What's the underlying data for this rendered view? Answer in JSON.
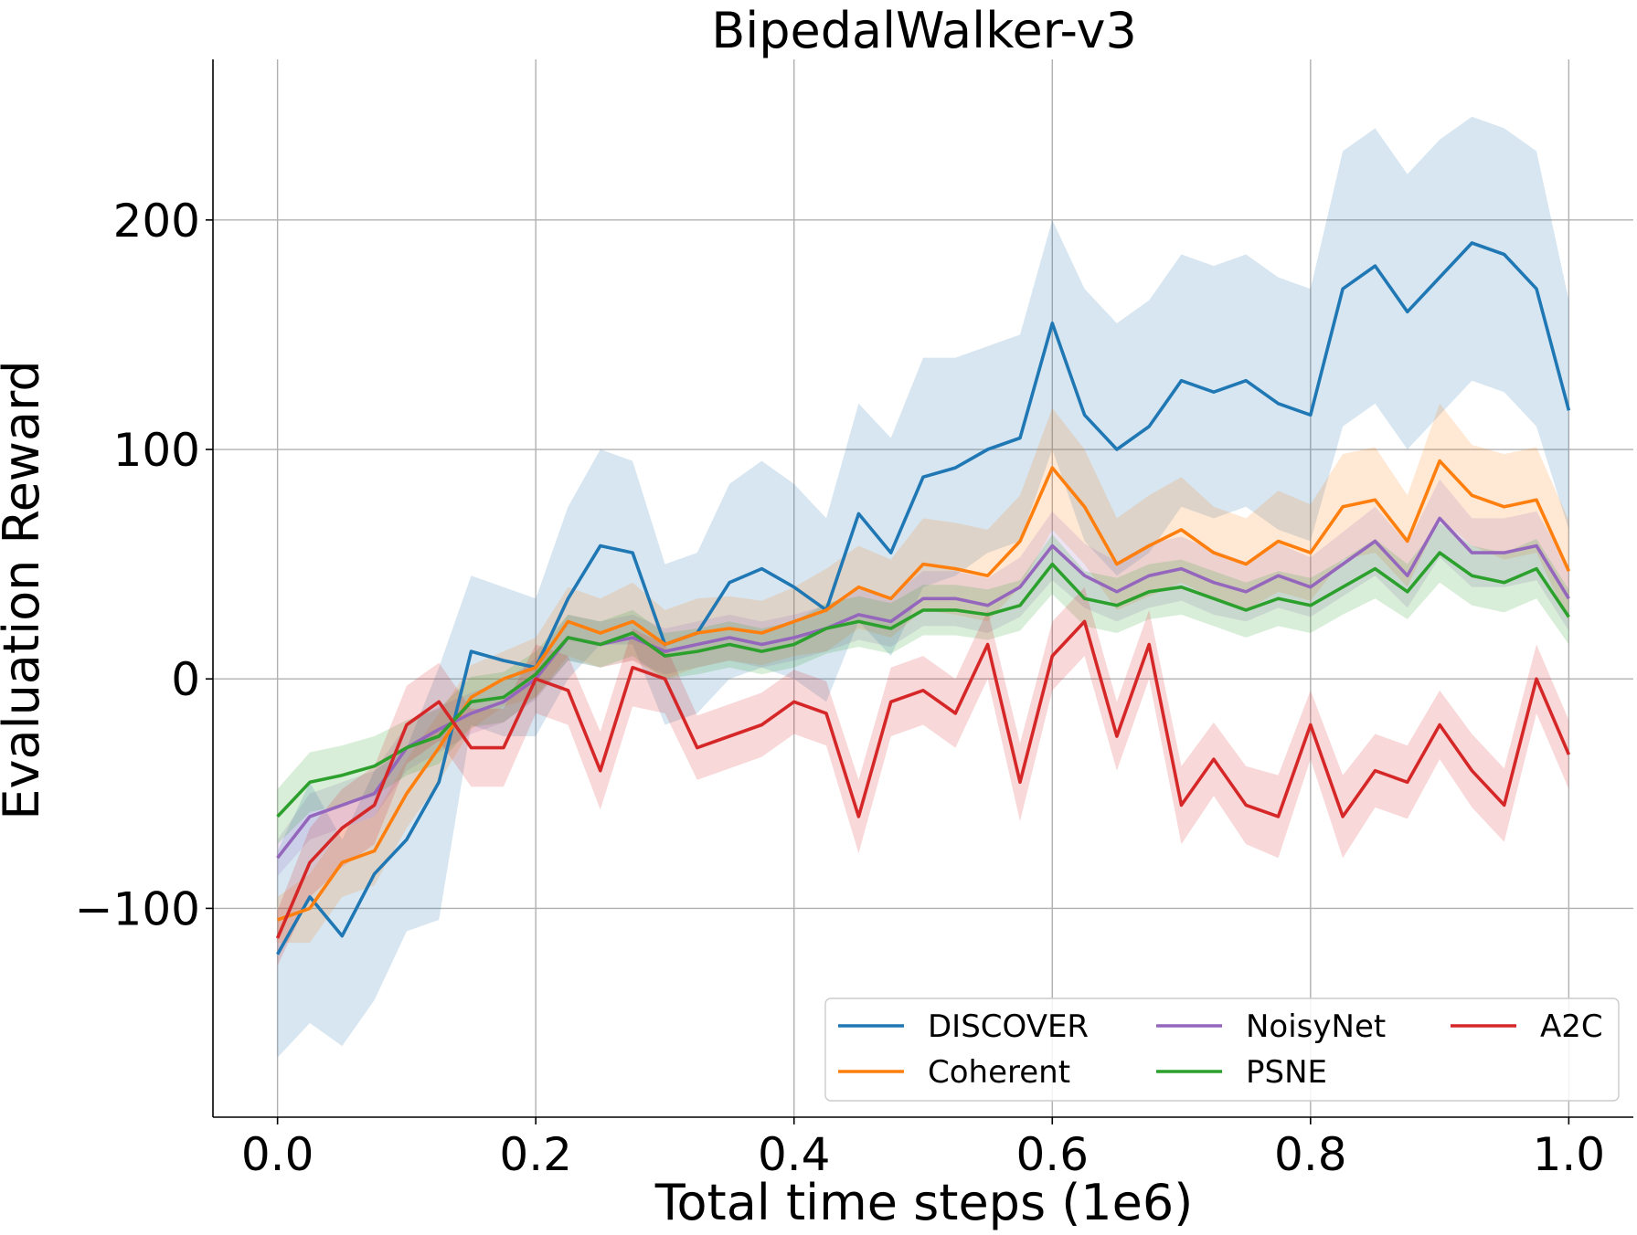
{
  "chart_data": {
    "type": "line",
    "title": "BipedalWalker-v3",
    "xlabel": "Total time steps (1e6)",
    "ylabel": "Evaluation Reward",
    "xlim": [
      -0.05,
      1.05
    ],
    "ylim": [
      -191,
      270
    ],
    "xticks": [
      0.0,
      0.2,
      0.4,
      0.6,
      0.8,
      1.0
    ],
    "xtick_labels": [
      "0.0",
      "0.2",
      "0.4",
      "0.6",
      "0.8",
      "1.0"
    ],
    "yticks": [
      -100,
      0,
      100,
      200
    ],
    "ytick_labels": [
      "−100",
      "0",
      "100",
      "200"
    ],
    "grid": true,
    "legend": {
      "placement": "lower-right",
      "columns": 3
    },
    "x": [
      0.0,
      0.025,
      0.05,
      0.075,
      0.1,
      0.125,
      0.15,
      0.175,
      0.2,
      0.225,
      0.25,
      0.275,
      0.3,
      0.325,
      0.35,
      0.375,
      0.4,
      0.425,
      0.45,
      0.475,
      0.5,
      0.525,
      0.55,
      0.575,
      0.6,
      0.625,
      0.65,
      0.675,
      0.7,
      0.725,
      0.75,
      0.775,
      0.8,
      0.825,
      0.85,
      0.875,
      0.9,
      0.925,
      0.95,
      0.975,
      1.0
    ],
    "series": [
      {
        "name": "DISCOVER",
        "color": "#1f77b4",
        "values": [
          -120,
          -95,
          -112,
          -85,
          -70,
          -45,
          12,
          8,
          5,
          35,
          58,
          55,
          15,
          20,
          42,
          48,
          40,
          30,
          72,
          55,
          88,
          92,
          100,
          105,
          155,
          115,
          100,
          110,
          130,
          125,
          130,
          120,
          115,
          170,
          180,
          160,
          175,
          190,
          185,
          170,
          117
        ],
        "band": [
          [
            -165,
            -75
          ],
          [
            -150,
            -45
          ],
          [
            -160,
            -70
          ],
          [
            -140,
            -40
          ],
          [
            -110,
            -30
          ],
          [
            -105,
            5
          ],
          [
            -20,
            45
          ],
          [
            -25,
            40
          ],
          [
            -25,
            35
          ],
          [
            0,
            75
          ],
          [
            15,
            100
          ],
          [
            15,
            95
          ],
          [
            -20,
            50
          ],
          [
            -15,
            55
          ],
          [
            0,
            85
          ],
          [
            5,
            95
          ],
          [
            0,
            85
          ],
          [
            -10,
            70
          ],
          [
            25,
            120
          ],
          [
            10,
            105
          ],
          [
            40,
            140
          ],
          [
            45,
            140
          ],
          [
            55,
            145
          ],
          [
            60,
            150
          ],
          [
            100,
            200
          ],
          [
            60,
            170
          ],
          [
            45,
            155
          ],
          [
            55,
            165
          ],
          [
            75,
            185
          ],
          [
            70,
            180
          ],
          [
            75,
            185
          ],
          [
            65,
            175
          ],
          [
            60,
            170
          ],
          [
            110,
            230
          ],
          [
            120,
            240
          ],
          [
            100,
            220
          ],
          [
            115,
            235
          ],
          [
            130,
            245
          ],
          [
            125,
            240
          ],
          [
            110,
            230
          ],
          [
            65,
            165
          ]
        ]
      },
      {
        "name": "Coherent",
        "color": "#ff7f0e",
        "values": [
          -105,
          -100,
          -80,
          -75,
          -50,
          -30,
          -8,
          0,
          5,
          25,
          20,
          25,
          15,
          20,
          22,
          20,
          25,
          30,
          40,
          35,
          50,
          48,
          45,
          60,
          92,
          75,
          50,
          58,
          65,
          55,
          50,
          60,
          55,
          75,
          78,
          60,
          95,
          80,
          75,
          78,
          47
        ],
        "band": [
          [
            -115,
            -95
          ],
          [
            -115,
            -85
          ],
          [
            -95,
            -65
          ],
          [
            -90,
            -60
          ],
          [
            -65,
            -35
          ],
          [
            -45,
            -15
          ],
          [
            -22,
            6
          ],
          [
            -12,
            12
          ],
          [
            -8,
            18
          ],
          [
            10,
            40
          ],
          [
            5,
            35
          ],
          [
            8,
            42
          ],
          [
            0,
            30
          ],
          [
            5,
            35
          ],
          [
            8,
            36
          ],
          [
            6,
            34
          ],
          [
            10,
            40
          ],
          [
            12,
            48
          ],
          [
            22,
            58
          ],
          [
            18,
            52
          ],
          [
            30,
            70
          ],
          [
            28,
            68
          ],
          [
            25,
            65
          ],
          [
            40,
            80
          ],
          [
            65,
            118
          ],
          [
            50,
            100
          ],
          [
            30,
            70
          ],
          [
            36,
            80
          ],
          [
            42,
            88
          ],
          [
            35,
            75
          ],
          [
            30,
            70
          ],
          [
            38,
            82
          ],
          [
            34,
            76
          ],
          [
            52,
            98
          ],
          [
            55,
            101
          ],
          [
            40,
            80
          ],
          [
            70,
            120
          ],
          [
            58,
            102
          ],
          [
            52,
            98
          ],
          [
            55,
            101
          ],
          [
            25,
            69
          ]
        ]
      },
      {
        "name": "NoisyNet",
        "color": "#9467bd",
        "values": [
          -78,
          -60,
          -55,
          -50,
          -30,
          -22,
          -15,
          -10,
          0,
          18,
          15,
          18,
          12,
          15,
          18,
          15,
          18,
          22,
          28,
          25,
          35,
          35,
          32,
          40,
          58,
          45,
          38,
          45,
          48,
          42,
          38,
          45,
          40,
          50,
          60,
          45,
          70,
          55,
          55,
          58,
          35
        ],
        "band": [
          [
            -86,
            -70
          ],
          [
            -70,
            -50
          ],
          [
            -65,
            -45
          ],
          [
            -60,
            -40
          ],
          [
            -40,
            -20
          ],
          [
            -32,
            -12
          ],
          [
            -24,
            -6
          ],
          [
            -19,
            -1
          ],
          [
            -9,
            9
          ],
          [
            8,
            28
          ],
          [
            5,
            25
          ],
          [
            8,
            28
          ],
          [
            2,
            22
          ],
          [
            5,
            25
          ],
          [
            8,
            28
          ],
          [
            5,
            25
          ],
          [
            8,
            28
          ],
          [
            12,
            32
          ],
          [
            17,
            39
          ],
          [
            14,
            36
          ],
          [
            23,
            47
          ],
          [
            23,
            47
          ],
          [
            20,
            44
          ],
          [
            27,
            53
          ],
          [
            43,
            73
          ],
          [
            31,
            59
          ],
          [
            25,
            51
          ],
          [
            31,
            59
          ],
          [
            34,
            62
          ],
          [
            28,
            56
          ],
          [
            25,
            51
          ],
          [
            31,
            59
          ],
          [
            27,
            53
          ],
          [
            36,
            64
          ],
          [
            45,
            75
          ],
          [
            31,
            59
          ],
          [
            53,
            87
          ],
          [
            40,
            70
          ],
          [
            40,
            70
          ],
          [
            43,
            73
          ],
          [
            21,
            49
          ]
        ]
      },
      {
        "name": "PSNE",
        "color": "#2ca02c",
        "values": [
          -60,
          -45,
          -42,
          -38,
          -30,
          -25,
          -10,
          -8,
          2,
          18,
          15,
          20,
          10,
          12,
          15,
          12,
          15,
          22,
          25,
          22,
          30,
          30,
          28,
          32,
          50,
          35,
          32,
          38,
          40,
          35,
          30,
          35,
          32,
          40,
          48,
          38,
          55,
          45,
          42,
          48,
          27
        ],
        "band": [
          [
            -72,
            -48
          ],
          [
            -58,
            -32
          ],
          [
            -55,
            -29
          ],
          [
            -51,
            -25
          ],
          [
            -42,
            -18
          ],
          [
            -37,
            -13
          ],
          [
            -21,
            1
          ],
          [
            -19,
            3
          ],
          [
            -8,
            12
          ],
          [
            8,
            28
          ],
          [
            5,
            25
          ],
          [
            10,
            30
          ],
          [
            0,
            20
          ],
          [
            2,
            22
          ],
          [
            5,
            25
          ],
          [
            2,
            22
          ],
          [
            5,
            25
          ],
          [
            11,
            33
          ],
          [
            14,
            36
          ],
          [
            11,
            33
          ],
          [
            19,
            41
          ],
          [
            19,
            41
          ],
          [
            17,
            39
          ],
          [
            21,
            43
          ],
          [
            37,
            63
          ],
          [
            23,
            47
          ],
          [
            20,
            44
          ],
          [
            26,
            50
          ],
          [
            28,
            52
          ],
          [
            23,
            47
          ],
          [
            18,
            42
          ],
          [
            23,
            47
          ],
          [
            20,
            44
          ],
          [
            28,
            52
          ],
          [
            35,
            61
          ],
          [
            26,
            50
          ],
          [
            42,
            68
          ],
          [
            32,
            58
          ],
          [
            29,
            55
          ],
          [
            35,
            61
          ],
          [
            15,
            39
          ]
        ]
      },
      {
        "name": "A2C",
        "color": "#d62728",
        "values": [
          -113,
          -80,
          -65,
          -55,
          -20,
          -10,
          -30,
          -30,
          0,
          -5,
          -40,
          5,
          0,
          -30,
          -25,
          -20,
          -10,
          -15,
          -60,
          -10,
          -5,
          -15,
          15,
          -45,
          10,
          25,
          -25,
          15,
          -55,
          -35,
          -55,
          -60,
          -20,
          -60,
          -40,
          -45,
          -20,
          -40,
          -55,
          0,
          -33
        ],
        "band": [
          [
            -125,
            -101
          ],
          [
            -95,
            -65
          ],
          [
            -82,
            -48
          ],
          [
            -72,
            -38
          ],
          [
            -37,
            -3
          ],
          [
            -27,
            7
          ],
          [
            -47,
            -13
          ],
          [
            -47,
            -13
          ],
          [
            -15,
            15
          ],
          [
            -20,
            10
          ],
          [
            -57,
            -23
          ],
          [
            -12,
            22
          ],
          [
            -15,
            15
          ],
          [
            -44,
            -16
          ],
          [
            -39,
            -11
          ],
          [
            -34,
            -6
          ],
          [
            -24,
            4
          ],
          [
            -29,
            -1
          ],
          [
            -76,
            -44
          ],
          [
            -25,
            5
          ],
          [
            -20,
            10
          ],
          [
            -30,
            0
          ],
          [
            0,
            30
          ],
          [
            -62,
            -28
          ],
          [
            -5,
            25
          ],
          [
            10,
            40
          ],
          [
            -40,
            -10
          ],
          [
            0,
            30
          ],
          [
            -72,
            -38
          ],
          [
            -51,
            -19
          ],
          [
            -72,
            -38
          ],
          [
            -78,
            -42
          ],
          [
            -35,
            -5
          ],
          [
            -78,
            -42
          ],
          [
            -56,
            -24
          ],
          [
            -61,
            -29
          ],
          [
            -35,
            -5
          ],
          [
            -56,
            -24
          ],
          [
            -71,
            -39
          ],
          [
            -15,
            15
          ],
          [
            -48,
            -18
          ]
        ]
      }
    ]
  }
}
